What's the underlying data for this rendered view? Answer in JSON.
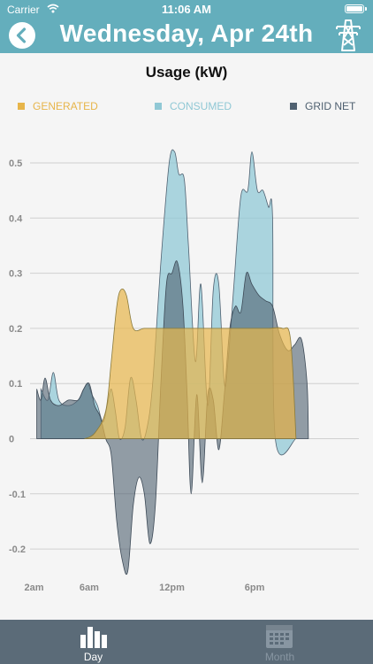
{
  "status_bar": {
    "carrier": "Carrier",
    "time": "11:06 AM",
    "battery_level": 1.0
  },
  "header": {
    "title": "Wednesday, Apr 24th",
    "back_icon": "chevron-left-icon",
    "action_icon": "power-tower-icon"
  },
  "chart_data": {
    "type": "area",
    "title": "Usage (kW)",
    "xlabel": "",
    "ylabel": "",
    "ylim": [
      -0.2,
      0.5
    ],
    "grid": true,
    "legend_position": "top",
    "y_ticks": [
      "0.5",
      "0.4",
      "0.3",
      "0.2",
      "0.1",
      "0",
      "-0.1",
      "-0.2"
    ],
    "x_ticks": [
      {
        "label": "2am",
        "hour": 2
      },
      {
        "label": "6am",
        "hour": 6
      },
      {
        "label": "12pm",
        "hour": 12
      },
      {
        "label": "6pm",
        "hour": 18
      }
    ],
    "series": [
      {
        "name": "GENERATED",
        "color": "#e7b54a",
        "points": [
          [
            5.7,
            0
          ],
          [
            6.4,
            0.01
          ],
          [
            7.2,
            0.05
          ],
          [
            7.6,
            0.14
          ],
          [
            8,
            0.24
          ],
          [
            8.3,
            0.27
          ],
          [
            8.7,
            0.26
          ],
          [
            9.2,
            0.2
          ],
          [
            10,
            0.2
          ],
          [
            11,
            0.2
          ],
          [
            12,
            0.2
          ],
          [
            13,
            0.2
          ],
          [
            14,
            0.2
          ],
          [
            15,
            0.2
          ],
          [
            16,
            0.2
          ],
          [
            17,
            0.2
          ],
          [
            18,
            0.2
          ],
          [
            19,
            0.2
          ],
          [
            20,
            0.2
          ],
          [
            20.6,
            0.18
          ],
          [
            21,
            0
          ]
        ]
      },
      {
        "name": "CONSUMED",
        "color": "#90c8d5",
        "points": [
          [
            2.5,
            0.09
          ],
          [
            3,
            0.07
          ],
          [
            3.4,
            0.12
          ],
          [
            3.8,
            0.07
          ],
          [
            4.5,
            0.06
          ],
          [
            5.2,
            0.07
          ],
          [
            5.6,
            0.09
          ],
          [
            5.9,
            0.1
          ],
          [
            6.2,
            0.08
          ],
          [
            6.6,
            0.06
          ],
          [
            7,
            0.03
          ],
          [
            7.3,
            0.06
          ],
          [
            7.6,
            0.09
          ],
          [
            7.9,
            0.05
          ],
          [
            8.2,
            0
          ],
          [
            8.6,
            0.02
          ],
          [
            9,
            0.11
          ],
          [
            9.4,
            0.07
          ],
          [
            9.8,
            0
          ],
          [
            10.2,
            0.02
          ],
          [
            10.6,
            0.1
          ],
          [
            11.2,
            0.32
          ],
          [
            11.8,
            0.5
          ],
          [
            12.2,
            0.52
          ],
          [
            12.5,
            0.48
          ],
          [
            12.9,
            0.47
          ],
          [
            13.2,
            0.35
          ],
          [
            13.7,
            0.14
          ],
          [
            14.1,
            0.28
          ],
          [
            14.6,
            0.06
          ],
          [
            15,
            0.27
          ],
          [
            15.4,
            0.28
          ],
          [
            15.8,
            0.1
          ],
          [
            16.1,
            0.15
          ],
          [
            16.5,
            0.28
          ],
          [
            17,
            0.44
          ],
          [
            17.5,
            0.45
          ],
          [
            17.8,
            0.52
          ],
          [
            18.2,
            0.45
          ],
          [
            18.6,
            0.45
          ],
          [
            19,
            0.42
          ],
          [
            19.3,
            0.4
          ],
          [
            19.5,
            0
          ],
          [
            21,
            0
          ]
        ]
      },
      {
        "name": "GRID NET",
        "color": "#4f6070",
        "points": [
          [
            2.2,
            0.09
          ],
          [
            2.5,
            0.07
          ],
          [
            2.8,
            0.11
          ],
          [
            3.2,
            0.07
          ],
          [
            3.8,
            0.06
          ],
          [
            4.5,
            0.07
          ],
          [
            5.2,
            0.07
          ],
          [
            5.6,
            0.09
          ],
          [
            6,
            0.1
          ],
          [
            6.4,
            0.06
          ],
          [
            6.8,
            0.04
          ],
          [
            7.2,
            0
          ],
          [
            7.6,
            -0.03
          ],
          [
            8,
            -0.15
          ],
          [
            8.4,
            -0.22
          ],
          [
            8.8,
            -0.24
          ],
          [
            9.2,
            -0.12
          ],
          [
            9.6,
            -0.07
          ],
          [
            10,
            -0.1
          ],
          [
            10.4,
            -0.19
          ],
          [
            10.8,
            -0.12
          ],
          [
            11.2,
            0.1
          ],
          [
            11.6,
            0.28
          ],
          [
            12,
            0.3
          ],
          [
            12.4,
            0.32
          ],
          [
            12.8,
            0.24
          ],
          [
            13.1,
            0.08
          ],
          [
            13.4,
            -0.1
          ],
          [
            13.8,
            0.08
          ],
          [
            14.2,
            -0.08
          ],
          [
            14.6,
            0.08
          ],
          [
            15,
            0.07
          ],
          [
            15.4,
            -0.02
          ],
          [
            15.8,
            0.08
          ],
          [
            16.2,
            0.2
          ],
          [
            16.6,
            0.24
          ],
          [
            17,
            0.23
          ],
          [
            17.4,
            0.3
          ],
          [
            17.8,
            0.28
          ],
          [
            18.3,
            0.26
          ],
          [
            18.8,
            0.25
          ],
          [
            19.3,
            0.24
          ],
          [
            19.8,
            0.19
          ],
          [
            20.4,
            0.16
          ],
          [
            20.9,
            0.17
          ],
          [
            21.4,
            0.18
          ],
          [
            21.8,
            0.1
          ],
          [
            21.9,
            0
          ]
        ]
      }
    ]
  },
  "tabs": [
    {
      "label": "Day",
      "icon": "bar-chart-icon",
      "active": true
    },
    {
      "label": "Month",
      "icon": "calendar-icon",
      "active": false
    }
  ]
}
